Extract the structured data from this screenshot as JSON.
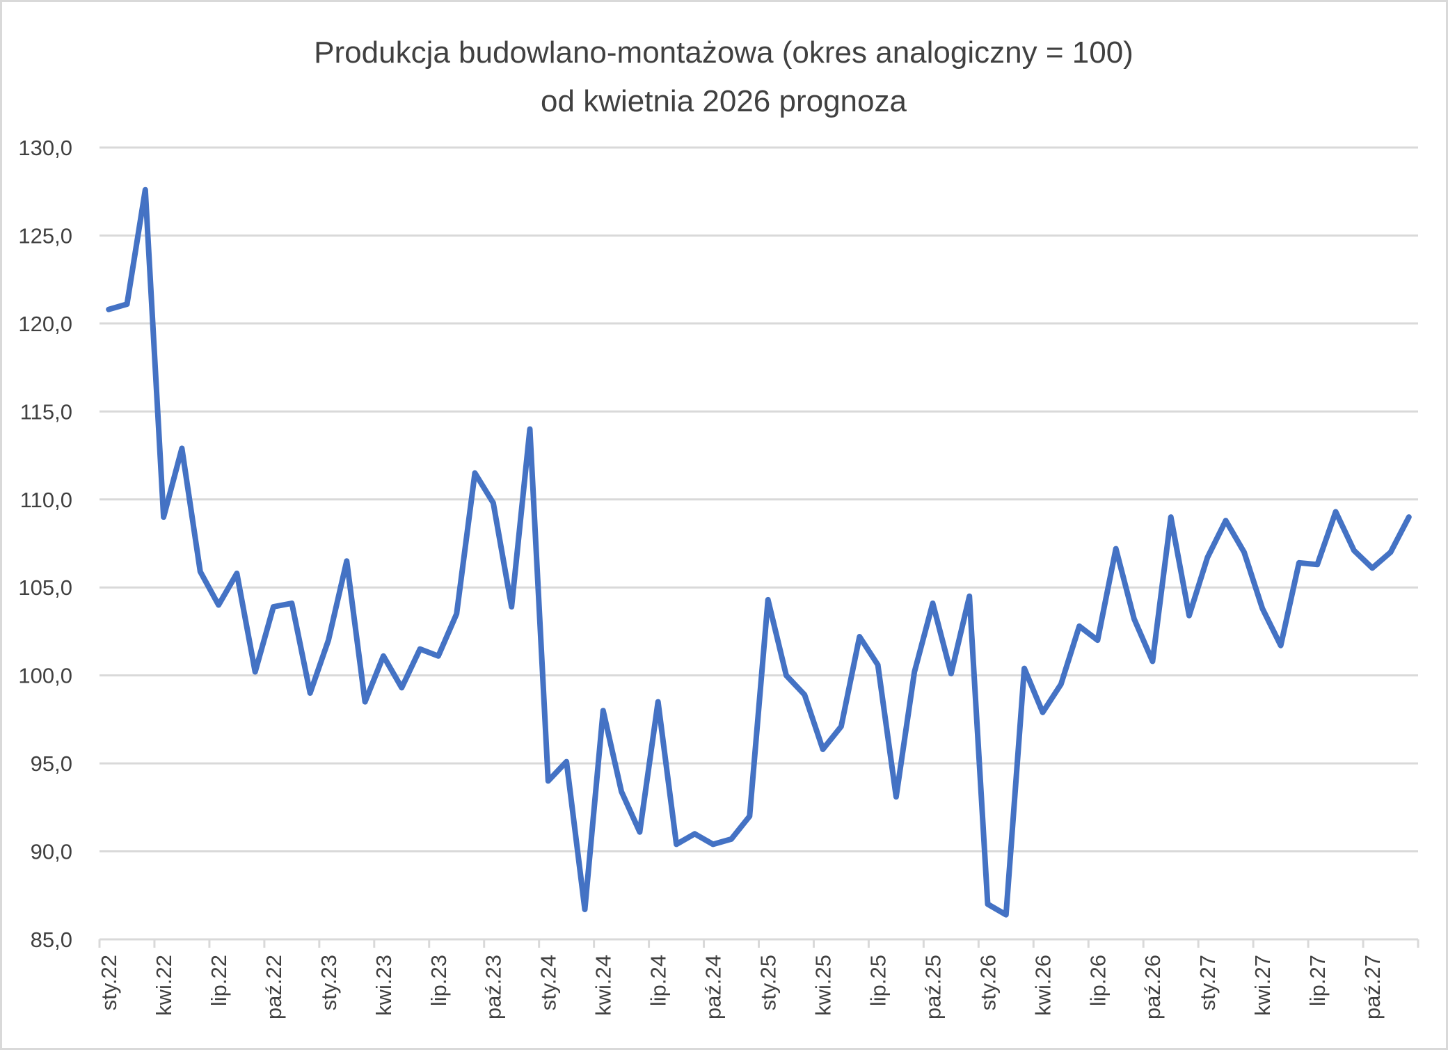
{
  "chart_data": {
    "type": "line",
    "title": "Produkcja budowlano-montażowa (okres analogiczny = 100)",
    "subtitle": "od  kwietnia 2026 prognoza",
    "xlabel": "",
    "ylabel": "",
    "ylim": [
      85,
      130
    ],
    "yticks": [
      "130,0",
      "125,0",
      "120,0",
      "115,0",
      "110,0",
      "105,0",
      "100,0",
      "95,0",
      "90,0",
      "85,0"
    ],
    "ytick_values": [
      130,
      125,
      120,
      115,
      110,
      105,
      100,
      95,
      90,
      85
    ],
    "grid": true,
    "legend": "none",
    "x_tick_labels": [
      "sty.22",
      "kwi.22",
      "lip.22",
      "paź.22",
      "sty.23",
      "kwi.23",
      "lip.23",
      "paź.23",
      "sty.24",
      "kwi.24",
      "lip.24",
      "paź.24",
      "sty.25",
      "kwi.25",
      "lip.25",
      "paź.25",
      "sty.26",
      "kwi.26",
      "lip.26",
      "paź.26",
      "sty.27",
      "kwi.27",
      "lip.27",
      "paź.27"
    ],
    "x": [
      "sty.22",
      "lut.22",
      "mar.22",
      "kwi.22",
      "maj.22",
      "cze.22",
      "lip.22",
      "sie.22",
      "wrz.22",
      "paź.22",
      "lis.22",
      "gru.22",
      "sty.23",
      "lut.23",
      "mar.23",
      "kwi.23",
      "maj.23",
      "cze.23",
      "lip.23",
      "sie.23",
      "wrz.23",
      "paź.23",
      "lis.23",
      "gru.23",
      "sty.24",
      "lut.24",
      "mar.24",
      "kwi.24",
      "maj.24",
      "cze.24",
      "lip.24",
      "sie.24",
      "wrz.24",
      "paź.24",
      "lis.24",
      "gru.24",
      "sty.25",
      "lut.25",
      "mar.25",
      "kwi.25",
      "maj.25",
      "cze.25",
      "lip.25",
      "sie.25",
      "wrz.25",
      "paź.25",
      "lis.25",
      "gru.25",
      "sty.26",
      "lut.26",
      "mar.26",
      "kwi.26",
      "maj.26",
      "cze.26",
      "lip.26",
      "sie.26",
      "wrz.26",
      "paź.26",
      "lis.26",
      "gru.26",
      "sty.27",
      "lut.27",
      "mar.27",
      "kwi.27",
      "maj.27",
      "cze.27",
      "lip.27",
      "sie.27",
      "wrz.27",
      "paź.27",
      "lis.27",
      "gru.27"
    ],
    "series": [
      {
        "name": "Produkcja budowlano-montażowa",
        "color": "#4472C4",
        "values": [
          120.8,
          121.1,
          127.6,
          109.0,
          112.9,
          105.9,
          104.0,
          105.8,
          100.2,
          103.9,
          104.1,
          99.0,
          102.0,
          106.5,
          98.5,
          101.1,
          99.3,
          101.5,
          101.1,
          103.5,
          111.5,
          109.8,
          103.9,
          114.0,
          94.0,
          95.1,
          86.7,
          98.0,
          93.4,
          91.1,
          98.5,
          90.4,
          91.0,
          90.4,
          90.7,
          92.0,
          104.3,
          100.0,
          98.9,
          95.8,
          97.1,
          102.2,
          100.6,
          93.1,
          100.2,
          104.1,
          100.1,
          104.5,
          87.0,
          86.4,
          100.4,
          97.9,
          99.5,
          102.8,
          102.0,
          107.2,
          103.2,
          100.8,
          109.0,
          103.4,
          106.7,
          108.8,
          107.0,
          103.8,
          101.7,
          106.4,
          106.3,
          109.3,
          107.1,
          106.1,
          107.0,
          109.0
        ]
      }
    ]
  },
  "colors": {
    "line": "#4472C4",
    "grid": "#d9d9d9",
    "text": "#404040",
    "border": "#d9d9d9"
  }
}
